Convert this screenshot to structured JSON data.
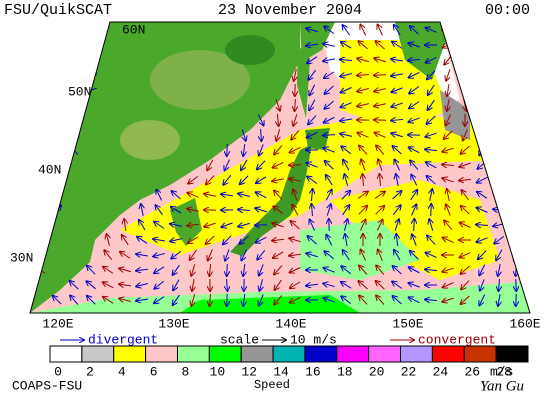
{
  "header": {
    "title": "FSU/QuikSCAT",
    "date": "23 November 2004",
    "time": "00:00"
  },
  "map": {
    "lat_labels": [
      "60N",
      "50N",
      "40N",
      "30N"
    ],
    "lon_labels": [
      "120E",
      "130E",
      "140E",
      "150E",
      "160E"
    ]
  },
  "legend": {
    "divergent": "divergent",
    "scale": "scale",
    "scale_value": "10 m/s",
    "convergent": "convergent"
  },
  "colorbar": {
    "labels": [
      "0",
      "2",
      "4",
      "6",
      "8",
      "10",
      "12",
      "14",
      "16",
      "18",
      "20",
      "22",
      "24",
      "26",
      "28"
    ],
    "unit": "m/s",
    "title": "Speed",
    "colors": [
      "#ffffff",
      "#c8c8c8",
      "#ffff00",
      "#ffc8c8",
      "#96ff96",
      "#00ff00",
      "#969696",
      "#00b4b4",
      "#0000c8",
      "#ff00ff",
      "#ff64ff",
      "#b496ff",
      "#ff0000",
      "#c83200",
      "#000000"
    ]
  },
  "footer": {
    "credit": "COAPS-FSU",
    "signature": "Yan Gu"
  }
}
